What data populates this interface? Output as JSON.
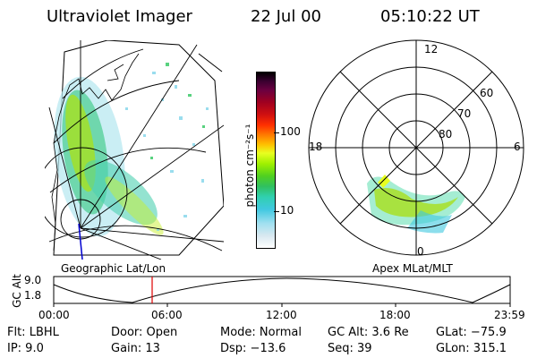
{
  "header": {
    "instrument": "Ultraviolet Imager",
    "date": "22 Jul 00",
    "time": "05:10:22 UT"
  },
  "left_panel": {
    "caption": "Geographic Lat/Lon"
  },
  "colorbar": {
    "unit_label": "photon cm⁻²s⁻¹",
    "ticks": [
      "100",
      "10"
    ],
    "colors": [
      "#000000",
      "#3a0030",
      "#6a0040",
      "#a00020",
      "#d01010",
      "#ff3000",
      "#ff8000",
      "#ffc000",
      "#e8ff20",
      "#a0f000",
      "#50d020",
      "#30c060",
      "#30d0b0",
      "#40c8e0",
      "#a0e0f0",
      "#d8e8f0",
      "#ffffff"
    ]
  },
  "polar_panel": {
    "caption": "Apex MLat/MLT",
    "mlt_labels": [
      "12",
      "18",
      "6",
      "0"
    ],
    "lat_labels": [
      "60",
      "70",
      "80"
    ]
  },
  "timeline": {
    "ylabel": "GC Alt",
    "y_ticks": [
      "9.0",
      "1.8"
    ],
    "x_ticks": [
      "00:00",
      "06:00",
      "12:00",
      "18:00",
      "23:59"
    ],
    "marker_color": "#e00000",
    "marker_time": "05:10"
  },
  "status": {
    "flt": "Flt: LBHL",
    "ip": "IP:  9.0",
    "door": "Door: Open",
    "gain": "Gain: 13",
    "mode": "Mode: Normal",
    "dsp": "Dsp:  −13.6",
    "gcalt": "GC Alt: 3.6 Re",
    "seq": "Seq: 39",
    "glat": "GLat: −75.9",
    "glon": "GLon: 315.1"
  }
}
